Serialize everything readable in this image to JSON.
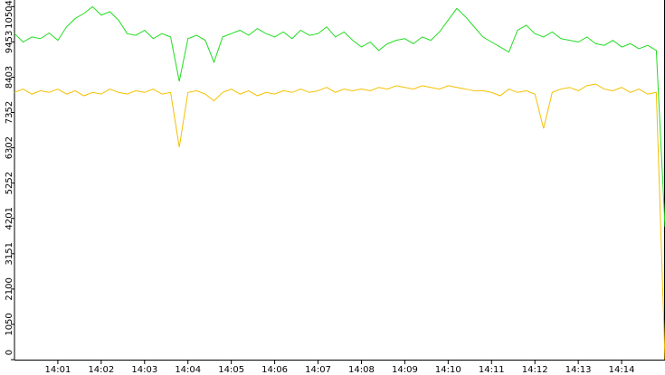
{
  "chart_data": {
    "type": "line",
    "x": [
      840,
      840.2,
      840.4,
      840.6,
      840.8,
      841,
      841.2,
      841.4,
      841.6,
      841.8,
      842,
      842.2,
      842.4,
      842.6,
      842.8,
      843,
      843.2,
      843.4,
      843.6,
      843.8,
      844,
      844.2,
      844.4,
      844.6,
      844.8,
      845,
      845.2,
      845.4,
      845.6,
      845.8,
      846,
      846.2,
      846.4,
      846.6,
      846.8,
      847,
      847.2,
      847.4,
      847.6,
      847.8,
      848,
      848.2,
      848.4,
      848.6,
      848.8,
      849,
      849.2,
      849.4,
      849.6,
      849.8,
      850,
      850.2,
      850.4,
      850.6,
      850.8,
      851,
      851.2,
      851.4,
      851.6,
      851.8,
      852,
      852.2,
      852.4,
      852.6,
      852.8,
      853,
      853.2,
      853.4,
      853.6,
      853.8,
      854,
      854.2,
      854.4,
      854.6,
      854.8,
      855
    ],
    "series": [
      {
        "color": "#22dd22",
        "values": [
          9700,
          9450,
          9600,
          9550,
          9720,
          9500,
          9900,
          10150,
          10300,
          10500,
          10250,
          10350,
          10100,
          9700,
          9650,
          9800,
          9550,
          9700,
          9600,
          8280,
          9550,
          9650,
          9500,
          8850,
          9600,
          9700,
          9800,
          9650,
          9850,
          9700,
          9600,
          9750,
          9550,
          9800,
          9650,
          9700,
          9900,
          9600,
          9750,
          9500,
          9300,
          9450,
          9200,
          9400,
          9500,
          9550,
          9400,
          9600,
          9500,
          9750,
          10100,
          10450,
          10200,
          9900,
          9600,
          9450,
          9300,
          9150,
          9800,
          9950,
          9700,
          9600,
          9750,
          9550,
          9500,
          9450,
          9600,
          9400,
          9350,
          9500,
          9300,
          9400,
          9250,
          9350,
          9200,
          3950
        ]
      },
      {
        "color": "#f5c000",
        "values": [
          7950,
          8050,
          7900,
          8000,
          7950,
          8050,
          7900,
          8000,
          7850,
          7950,
          7900,
          8050,
          7950,
          7900,
          8000,
          7950,
          8050,
          7900,
          7950,
          6320,
          7950,
          8000,
          7900,
          7700,
          7950,
          8050,
          7900,
          8000,
          7850,
          7950,
          7900,
          8000,
          7950,
          8050,
          7950,
          8000,
          8100,
          7950,
          8050,
          8000,
          8050,
          8000,
          8100,
          8050,
          8150,
          8100,
          8050,
          8150,
          8100,
          8050,
          8150,
          8100,
          8050,
          8000,
          8000,
          7950,
          7850,
          8050,
          7950,
          8000,
          7900,
          6880,
          7950,
          8050,
          8100,
          8000,
          8150,
          8200,
          8050,
          8000,
          8100,
          7950,
          8050,
          7900,
          7950,
          0
        ]
      }
    ],
    "xlim": [
      840,
      855
    ],
    "xticks": [
      {
        "value": 841,
        "label": "14:01"
      },
      {
        "value": 842,
        "label": "14:02"
      },
      {
        "value": 843,
        "label": "14:03"
      },
      {
        "value": 844,
        "label": "14:04"
      },
      {
        "value": 845,
        "label": "14:05"
      },
      {
        "value": 846,
        "label": "14:06"
      },
      {
        "value": 847,
        "label": "14:07"
      },
      {
        "value": 848,
        "label": "14:08"
      },
      {
        "value": 849,
        "label": "14:09"
      },
      {
        "value": 850,
        "label": "14:10"
      },
      {
        "value": 851,
        "label": "14:11"
      },
      {
        "value": 852,
        "label": "14:12"
      },
      {
        "value": 853,
        "label": "14:13"
      },
      {
        "value": 854,
        "label": "14:14"
      }
    ],
    "ylim": [
      0,
      10700
    ],
    "yticks": [
      0,
      1050,
      2100,
      3151,
      4201,
      5252,
      6302,
      7352,
      8403,
      9453,
      10504
    ]
  }
}
